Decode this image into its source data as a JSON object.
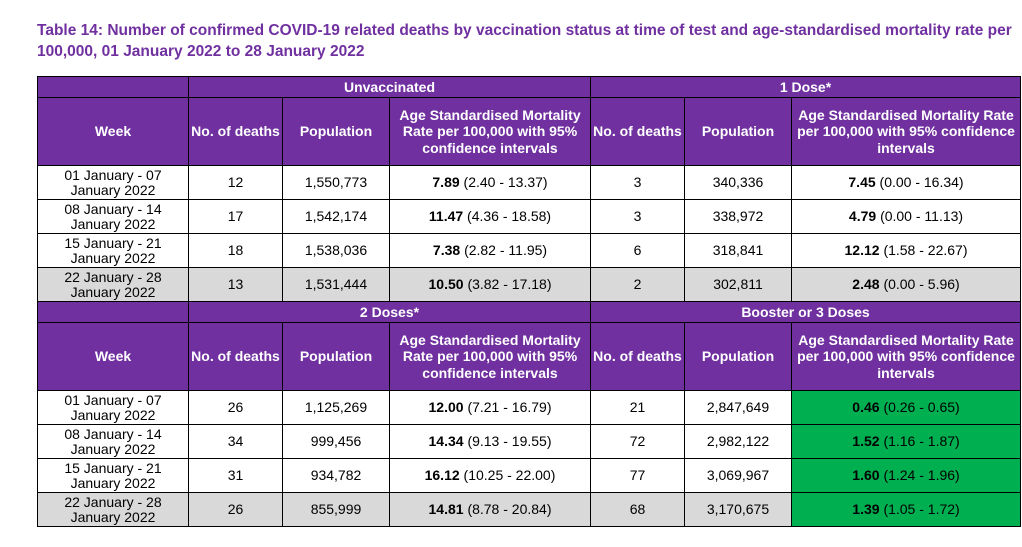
{
  "title": "Table 14: Number of confirmed COVID-19 related deaths by vaccination status at time of test and age-standardised mortality rate per 100,000, 01 January 2022 to 28 January 2022",
  "columns": {
    "week": "Week",
    "deaths": "No. of deaths",
    "population": "Population",
    "asmr_left": "Age Standardised Mortality Rate per 100,000 with 95% confidence intervals",
    "asmr_right": "Age Standardised Mortality Rate per 100,000 with 95% confidence intervals"
  },
  "colors": {
    "header": "#7030a0",
    "shaded": "#d9d9d9",
    "highlight": "#00b050"
  },
  "sections": [
    {
      "left_group": "Unvaccinated",
      "right_group": "1 Dose*",
      "rows": [
        {
          "week": "01 January - 07 January 2022",
          "l_deaths": "12",
          "l_pop": "1,550,773",
          "l_rate": "7.89",
          "l_ci": "(2.40 - 13.37)",
          "r_deaths": "3",
          "r_pop": "340,336",
          "r_rate": "7.45",
          "r_ci": "(0.00 - 16.34)"
        },
        {
          "week": "08 January - 14 January 2022",
          "l_deaths": "17",
          "l_pop": "1,542,174",
          "l_rate": "11.47",
          "l_ci": "(4.36 - 18.58)",
          "r_deaths": "3",
          "r_pop": "338,972",
          "r_rate": "4.79",
          "r_ci": "(0.00 - 11.13)"
        },
        {
          "week": "15 January - 21 January 2022",
          "l_deaths": "18",
          "l_pop": "1,538,036",
          "l_rate": "7.38",
          "l_ci": "(2.82 - 11.95)",
          "r_deaths": "6",
          "r_pop": "318,841",
          "r_rate": "12.12",
          "r_ci": "(1.58 - 22.67)"
        },
        {
          "week": "22 January - 28 January 2022",
          "l_deaths": "13",
          "l_pop": "1,531,444",
          "l_rate": "10.50",
          "l_ci": "(3.82 - 17.18)",
          "r_deaths": "2",
          "r_pop": "302,811",
          "r_rate": "2.48",
          "r_ci": "(0.00 - 5.96)"
        }
      ]
    },
    {
      "left_group": "2 Doses*",
      "right_group": "Booster or 3 Doses",
      "rows": [
        {
          "week": "01 January - 07 January 2022",
          "l_deaths": "26",
          "l_pop": "1,125,269",
          "l_rate": "12.00",
          "l_ci": "(7.21 - 16.79)",
          "r_deaths": "21",
          "r_pop": "2,847,649",
          "r_rate": "0.46",
          "r_ci": "(0.26 - 0.65)"
        },
        {
          "week": "08 January - 14 January 2022",
          "l_deaths": "34",
          "l_pop": "999,456",
          "l_rate": "14.34",
          "l_ci": "(9.13 - 19.55)",
          "r_deaths": "72",
          "r_pop": "2,982,122",
          "r_rate": "1.52",
          "r_ci": "(1.16 - 1.87)"
        },
        {
          "week": "15 January - 21 January 2022",
          "l_deaths": "31",
          "l_pop": "934,782",
          "l_rate": "16.12",
          "l_ci": "(10.25 - 22.00)",
          "r_deaths": "77",
          "r_pop": "3,069,967",
          "r_rate": "1.60",
          "r_ci": "(1.24 - 1.96)"
        },
        {
          "week": "22 January - 28 January 2022",
          "l_deaths": "26",
          "l_pop": "855,999",
          "l_rate": "14.81",
          "l_ci": "(8.78 - 20.84)",
          "r_deaths": "68",
          "r_pop": "3,170,675",
          "r_rate": "1.39",
          "r_ci": "(1.05 - 1.72)"
        }
      ]
    }
  ]
}
